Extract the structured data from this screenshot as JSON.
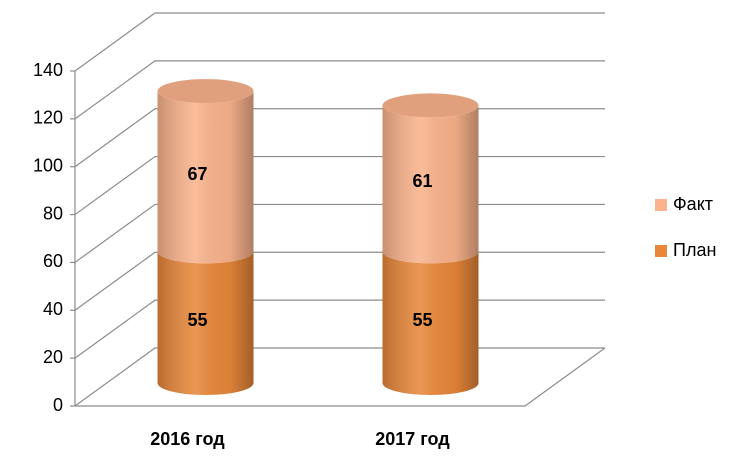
{
  "chart_data": {
    "type": "bar3d_stacked",
    "categories": [
      "2016 год",
      "2017 год"
    ],
    "series": [
      {
        "name": "План",
        "color": "#e8873a",
        "values": [
          55,
          55
        ]
      },
      {
        "name": "Факт",
        "color": "#fab38c",
        "values": [
          67,
          61
        ]
      }
    ],
    "ylim": [
      0,
      140
    ],
    "yticks": [
      0,
      20,
      40,
      60,
      80,
      100,
      120,
      140
    ],
    "grid": true,
    "legend": "right"
  }
}
